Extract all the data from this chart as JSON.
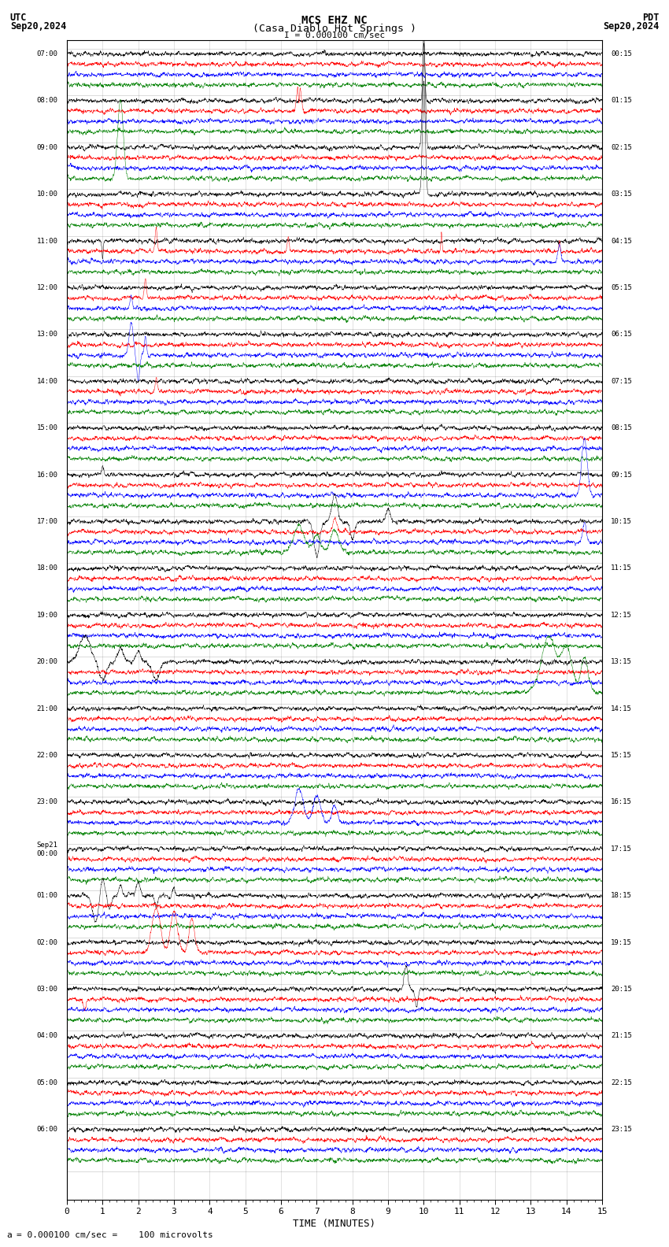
{
  "title_line1": "MCS EHZ NC",
  "title_line2": "(Casa Diablo Hot Springs )",
  "scale_text": "I = 0.000100 cm/sec",
  "utc_label": "UTC",
  "pdt_label": "PDT",
  "date_left": "Sep20,2024",
  "date_right": "Sep20,2024",
  "xlabel": "TIME (MINUTES)",
  "footer_text": "= 0.000100 cm/sec =    100 microvolts",
  "bg_color": "#ffffff",
  "trace_colors": [
    "black",
    "red",
    "blue",
    "green"
  ],
  "minutes_per_row": 15,
  "left_labels": [
    "07:00",
    "08:00",
    "09:00",
    "10:00",
    "11:00",
    "12:00",
    "13:00",
    "14:00",
    "15:00",
    "16:00",
    "17:00",
    "18:00",
    "19:00",
    "20:00",
    "21:00",
    "22:00",
    "23:00",
    "Sep21\n00:00",
    "01:00",
    "02:00",
    "03:00",
    "04:00",
    "05:00",
    "06:00"
  ],
  "right_labels": [
    "00:15",
    "01:15",
    "02:15",
    "03:15",
    "04:15",
    "05:15",
    "06:15",
    "07:15",
    "08:15",
    "09:15",
    "10:15",
    "11:15",
    "12:15",
    "13:15",
    "14:15",
    "15:15",
    "16:15",
    "17:15",
    "18:15",
    "19:15",
    "20:15",
    "21:15",
    "22:15",
    "23:15"
  ],
  "n_groups": 24,
  "seed": 12345
}
